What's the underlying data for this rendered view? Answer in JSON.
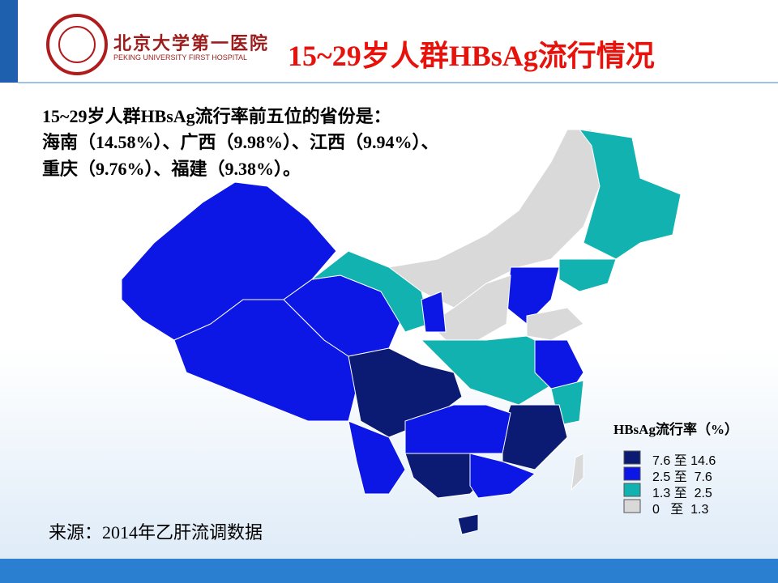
{
  "header": {
    "logo_cn": "北京大学第一医院",
    "logo_en": "PEKING UNIVERSITY FIRST HOSPITAL",
    "title": "15~29岁人群HBsAg流行情况"
  },
  "text": {
    "lines": [
      "15~29岁人群HBsAg流行率前五位的省份是：",
      "海南（14.58%）、广西（9.98%）、江西（9.94%）、",
      "重庆（9.76%）、福建（9.38%）。"
    ]
  },
  "legend": {
    "title": "HBsAg流行率（%）",
    "items": [
      {
        "label": "7.6 至 14.6",
        "color": "#0b1a72"
      },
      {
        "label": "2.5 至  7.6",
        "color": "#0c17e6"
      },
      {
        "label": "1.3 至  2.5",
        "color": "#12b2b0"
      },
      {
        "label": "0   至  1.3",
        "color": "#d9d9d9"
      }
    ]
  },
  "source": "来源：2014年乙肝流调数据"
}
